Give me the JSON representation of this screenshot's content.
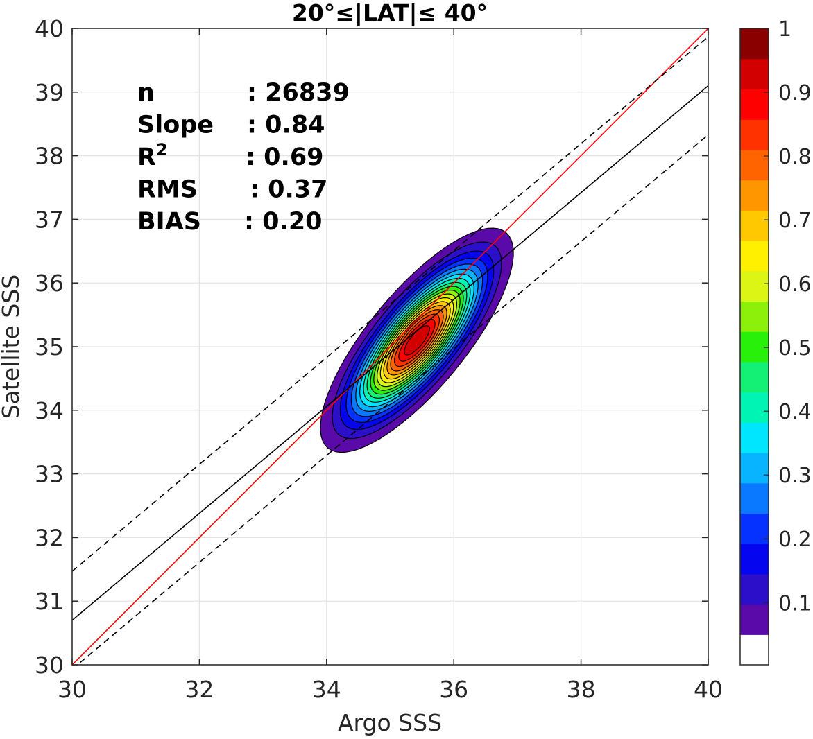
{
  "chart_data": {
    "type": "contour",
    "title": "20°≤|LAT|≤ 40°",
    "xlabel": "Argo SSS",
    "ylabel": "Satellite SSS",
    "xlim": [
      30,
      40
    ],
    "ylim": [
      30,
      40
    ],
    "xticks": [
      "30",
      "32",
      "34",
      "36",
      "38",
      "40"
    ],
    "yticks": [
      "30",
      "31",
      "32",
      "33",
      "34",
      "35",
      "36",
      "37",
      "38",
      "39",
      "40"
    ],
    "grid": true,
    "stats": [
      {
        "label": "n",
        "value": ": 26839"
      },
      {
        "label": "Slope",
        "value": ": 0.84"
      },
      {
        "label": "R",
        "sup": "2",
        "value": ": 0.69"
      },
      {
        "label": "RMS",
        "value": ": 0.37"
      },
      {
        "label": "BIAS",
        "value": ": 0.20"
      }
    ],
    "lines": [
      {
        "role": "one-to-one",
        "color": "#ff0000",
        "style": "solid",
        "slope": 1.0,
        "intercept": 0.0
      },
      {
        "role": "regression",
        "color": "#000000",
        "style": "solid",
        "slope": 0.84,
        "intercept": 5.5
      },
      {
        "role": "upper-bound",
        "color": "#000000",
        "style": "dashed",
        "slope": 0.84,
        "intercept": 6.27
      },
      {
        "role": "lower-bound",
        "color": "#000000",
        "style": "dashed",
        "slope": 0.84,
        "intercept": 4.73
      }
    ],
    "density_blobs": [
      {
        "cx": 35.42,
        "cy": 35.1,
        "sx": 0.62,
        "sy": 0.72,
        "rho": 0.78,
        "peak": 1.0
      },
      {
        "cx": 36.75,
        "cy": 36.45,
        "sx": 0.21,
        "sy": 0.25,
        "rho": 0.3,
        "peak": 0.06
      }
    ],
    "contour_levels": [
      0.05,
      0.1,
      0.15,
      0.2,
      0.25,
      0.3,
      0.35,
      0.4,
      0.45,
      0.5,
      0.55,
      0.6,
      0.65,
      0.7,
      0.75,
      0.8,
      0.85,
      0.9,
      0.95
    ],
    "colorbar": {
      "colors": [
        "#ffffff",
        "#5a0aa9",
        "#2c0fc8",
        "#0505f0",
        "#0532ff",
        "#0a78ff",
        "#08b4ff",
        "#00e6ff",
        "#00f5b4",
        "#14f075",
        "#28f00a",
        "#8cf00a",
        "#dcf514",
        "#fff000",
        "#ffc800",
        "#ff9600",
        "#ff6400",
        "#ff3200",
        "#ff0000",
        "#d20000",
        "#8a0000"
      ],
      "tick_values": [
        0.1,
        0.2,
        0.3,
        0.4,
        0.5,
        0.6,
        0.7,
        0.8,
        0.9,
        1.0
      ],
      "tick_labels": [
        "0.1",
        "0.2",
        "0.3",
        "0.4",
        "0.5",
        "0.6",
        "0.7",
        "0.8",
        "0.9",
        "1"
      ]
    }
  }
}
